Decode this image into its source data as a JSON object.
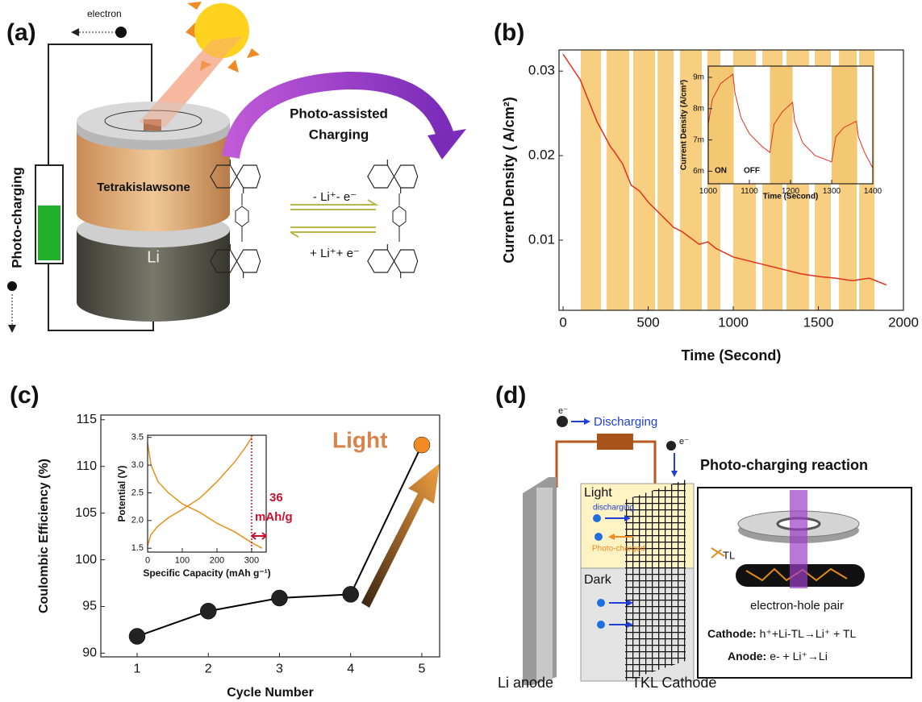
{
  "panel_labels": [
    "(a)",
    "(b)",
    "(c)",
    "(d)"
  ],
  "diagram_a": {
    "electron": "electron",
    "side_label": "Photo-charging",
    "cathode": "Tetrakislawsone",
    "anode": "Li",
    "process": [
      "Photo-assisted",
      "Charging"
    ],
    "forward": "- Li⁺- e⁻",
    "backward": "+ Li⁺+ e⁻"
  },
  "chart_data": [
    {
      "type": "line",
      "x_label": "Time (Second)",
      "y_label": "Current Density ( A/cm²)",
      "x": [
        0,
        100,
        200,
        280,
        300,
        350,
        400,
        450,
        500,
        550,
        600,
        650,
        700,
        800,
        850,
        900,
        1000,
        1100,
        1200,
        1300,
        1400,
        1500,
        1600,
        1700,
        1800,
        1900
      ],
      "values": [
        0.032,
        0.029,
        0.024,
        0.021,
        0.0205,
        0.019,
        0.0165,
        0.0158,
        0.0145,
        0.0135,
        0.0125,
        0.0115,
        0.011,
        0.0095,
        0.0098,
        0.009,
        0.008,
        0.0075,
        0.007,
        0.0065,
        0.006,
        0.0057,
        0.0055,
        0.0052,
        0.0055,
        0.0047
      ],
      "color": "#e0301e",
      "xlim": [
        -24,
        2000
      ],
      "ylim": [
        0.0017,
        0.0325
      ],
      "xticks": [
        0,
        500,
        1000,
        1500,
        2000
      ],
      "yticks": [
        0.01,
        0.02,
        0.03
      ],
      "bands": [
        [
          104,
          223
        ],
        [
          256,
          389
        ],
        [
          412,
          540
        ],
        [
          555,
          649
        ],
        [
          687,
          815
        ],
        [
          848,
          924
        ],
        [
          1000,
          1133
        ],
        [
          1171,
          1289
        ],
        [
          1313,
          1445
        ],
        [
          1479,
          1573
        ],
        [
          1621,
          1725
        ],
        [
          1740,
          1830
        ]
      ],
      "band_color": "#f7c56b"
    },
    {
      "type": "line",
      "x_label": "Time (Second)",
      "y_label": "Current Density (A/cm²)",
      "annotations": [
        "ON",
        "OFF"
      ],
      "x": [
        1000,
        1010,
        1030,
        1060,
        1065,
        1080,
        1100,
        1130,
        1150,
        1160,
        1180,
        1205,
        1210,
        1230,
        1260,
        1300,
        1310,
        1330,
        1360,
        1365,
        1380,
        1400
      ],
      "values": [
        0.0075,
        0.0083,
        0.0088,
        0.0091,
        0.0085,
        0.0077,
        0.0072,
        0.0068,
        0.0066,
        0.0075,
        0.0079,
        0.0082,
        0.0076,
        0.0069,
        0.0065,
        0.0063,
        0.0071,
        0.0074,
        0.0076,
        0.0071,
        0.0066,
        0.0061
      ],
      "color": "#e0301e",
      "xlim": [
        1000,
        1400
      ],
      "ylim": [
        0.0056,
        0.00936
      ],
      "xticks": [
        1000,
        1100,
        1200,
        1300,
        1400
      ],
      "yticks": [
        {
          "value": 0.006,
          "label": "6m"
        },
        {
          "value": 0.007,
          "label": "7m"
        },
        {
          "value": 0.008,
          "label": "8m"
        },
        {
          "value": 0.009,
          "label": "9m"
        }
      ],
      "bands": [
        [
          1000,
          1062
        ],
        [
          1150,
          1205
        ],
        [
          1300,
          1362
        ]
      ],
      "band_color": "#f2bd5a"
    },
    {
      "type": "line",
      "x_label": "Cycle Number",
      "y_label": "Coulombic Efficiency (%)",
      "annotations": [
        "Light"
      ],
      "x": [
        1,
        2,
        3,
        4,
        5
      ],
      "values": [
        91.8,
        94.5,
        95.9,
        96.3,
        112.3
      ],
      "color": "#000000",
      "marker_colors": [
        "#222222",
        "#222222",
        "#222222",
        "#222222",
        "#f08a24"
      ],
      "xlim": [
        0.49,
        5.25
      ],
      "ylim": [
        89.6,
        115.5
      ],
      "xticks": [
        1,
        2,
        3,
        4,
        5
      ],
      "yticks": [
        90,
        95,
        100,
        105,
        110,
        115
      ]
    },
    {
      "type": "line",
      "x_label": "Specific Capacity (mAh g⁻¹)",
      "y_label": "Potential (V)",
      "annotations": [
        "36",
        "mAh/g"
      ],
      "series": [
        {
          "color": "#e8901c",
          "x": [
            0,
            10,
            30,
            60,
            100,
            150,
            200,
            250,
            280,
            300
          ],
          "values": [
            1.55,
            1.75,
            1.9,
            2.05,
            2.2,
            2.4,
            2.7,
            3.05,
            3.3,
            3.5
          ]
        },
        {
          "color": "#e8901c",
          "x": [
            0,
            10,
            30,
            60,
            100,
            150,
            200,
            250,
            300,
            330
          ],
          "values": [
            3.4,
            3.0,
            2.7,
            2.5,
            2.3,
            2.15,
            1.95,
            1.8,
            1.6,
            1.5
          ]
        }
      ],
      "marker_line": 300,
      "marker_line_color": "#c8102e",
      "xlim": [
        0,
        342
      ],
      "ylim": [
        1.43,
        3.54
      ],
      "xticks": [
        0,
        100,
        200,
        300
      ],
      "yticks": [
        1.5,
        {
          "value": 2,
          "label": "2.0"
        },
        2.5,
        {
          "value": 3,
          "label": "3.0"
        },
        3.5
      ]
    }
  ],
  "diagram_d": {
    "electron_left": "e⁻",
    "discharging": "Discharging",
    "electron_right": "e⁻",
    "title": "Photo-charging reaction",
    "light": "Light",
    "light_discharging": "discharging",
    "photo_charged": "Photo-charged",
    "dark": "Dark",
    "tl": "TL",
    "pair": "electron-hole pair",
    "cathode": {
      "label": "Cathode:",
      "text": "h⁺+Li-TL→Li⁺ + TL"
    },
    "anode": {
      "label": "Anode:",
      "text": "e- + Li⁺→Li"
    },
    "li_anode": "Li anode",
    "tkl_cathode": "TKL Cathode"
  }
}
